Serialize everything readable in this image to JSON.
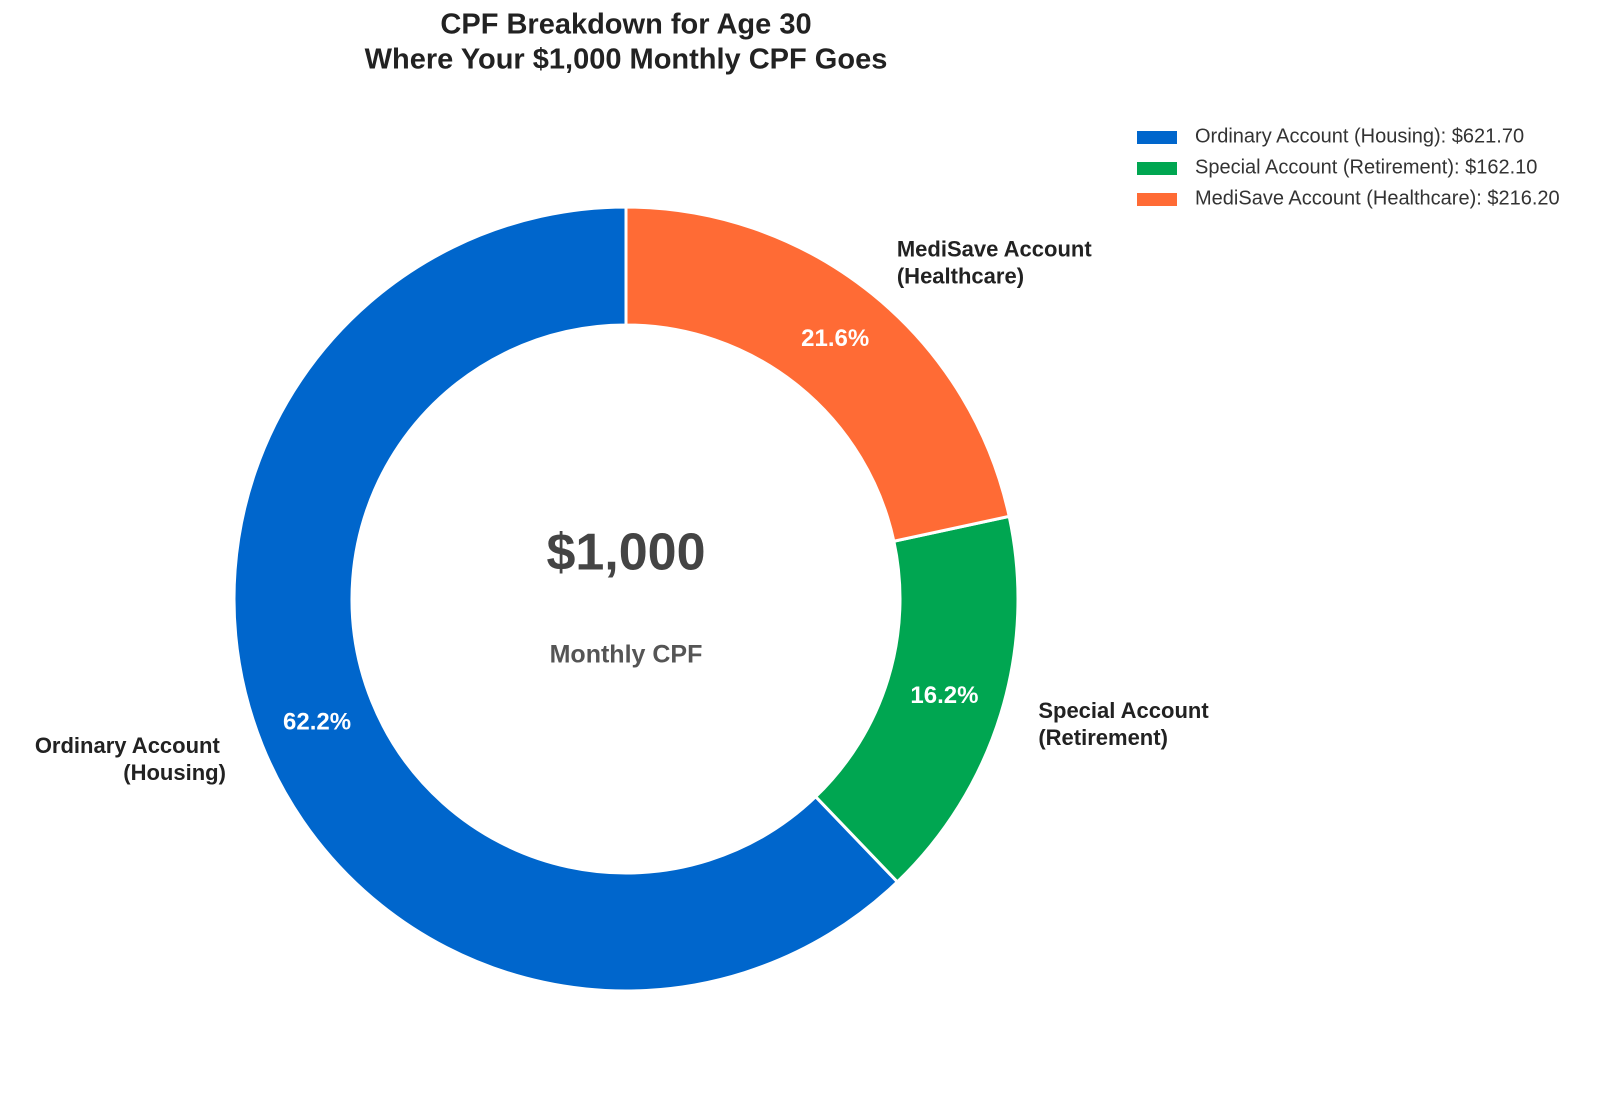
{
  "chart_data": {
    "type": "pie",
    "donut": true,
    "title": "CPF Breakdown for Age 30",
    "subtitle": "Where Your $1,000 Monthly CPF Goes",
    "categories": [
      "Ordinary Account (Housing)",
      "Special Account (Retirement)",
      "MediSave Account (Healthcare)"
    ],
    "values": [
      62.17,
      16.21,
      21.62
    ],
    "value_labels": [
      "62.2%",
      "16.2%",
      "21.6%"
    ],
    "colors": [
      "#0066cc",
      "#00a651",
      "#ff6b35"
    ],
    "legend_labels": [
      "Ordinary Account (Housing): $621.70",
      "Special Account (Retirement): $162.10",
      "MediSave Account (Healthcare): $216.20"
    ],
    "legend": "upper right",
    "annotations": [
      "$1,000",
      "Monthly CPF"
    ]
  }
}
